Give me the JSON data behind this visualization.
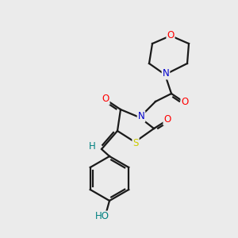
{
  "background_color": "#ebebeb",
  "bond_color": "#1a1a1a",
  "atom_colors": {
    "O": "#ff0000",
    "N": "#0000cc",
    "S": "#cccc00",
    "HO": "#008080",
    "H": "#008080",
    "C": "#1a1a1a"
  },
  "font_size_atoms": 8.5,
  "figure_size": [
    3.0,
    3.0
  ],
  "dpi": 100
}
